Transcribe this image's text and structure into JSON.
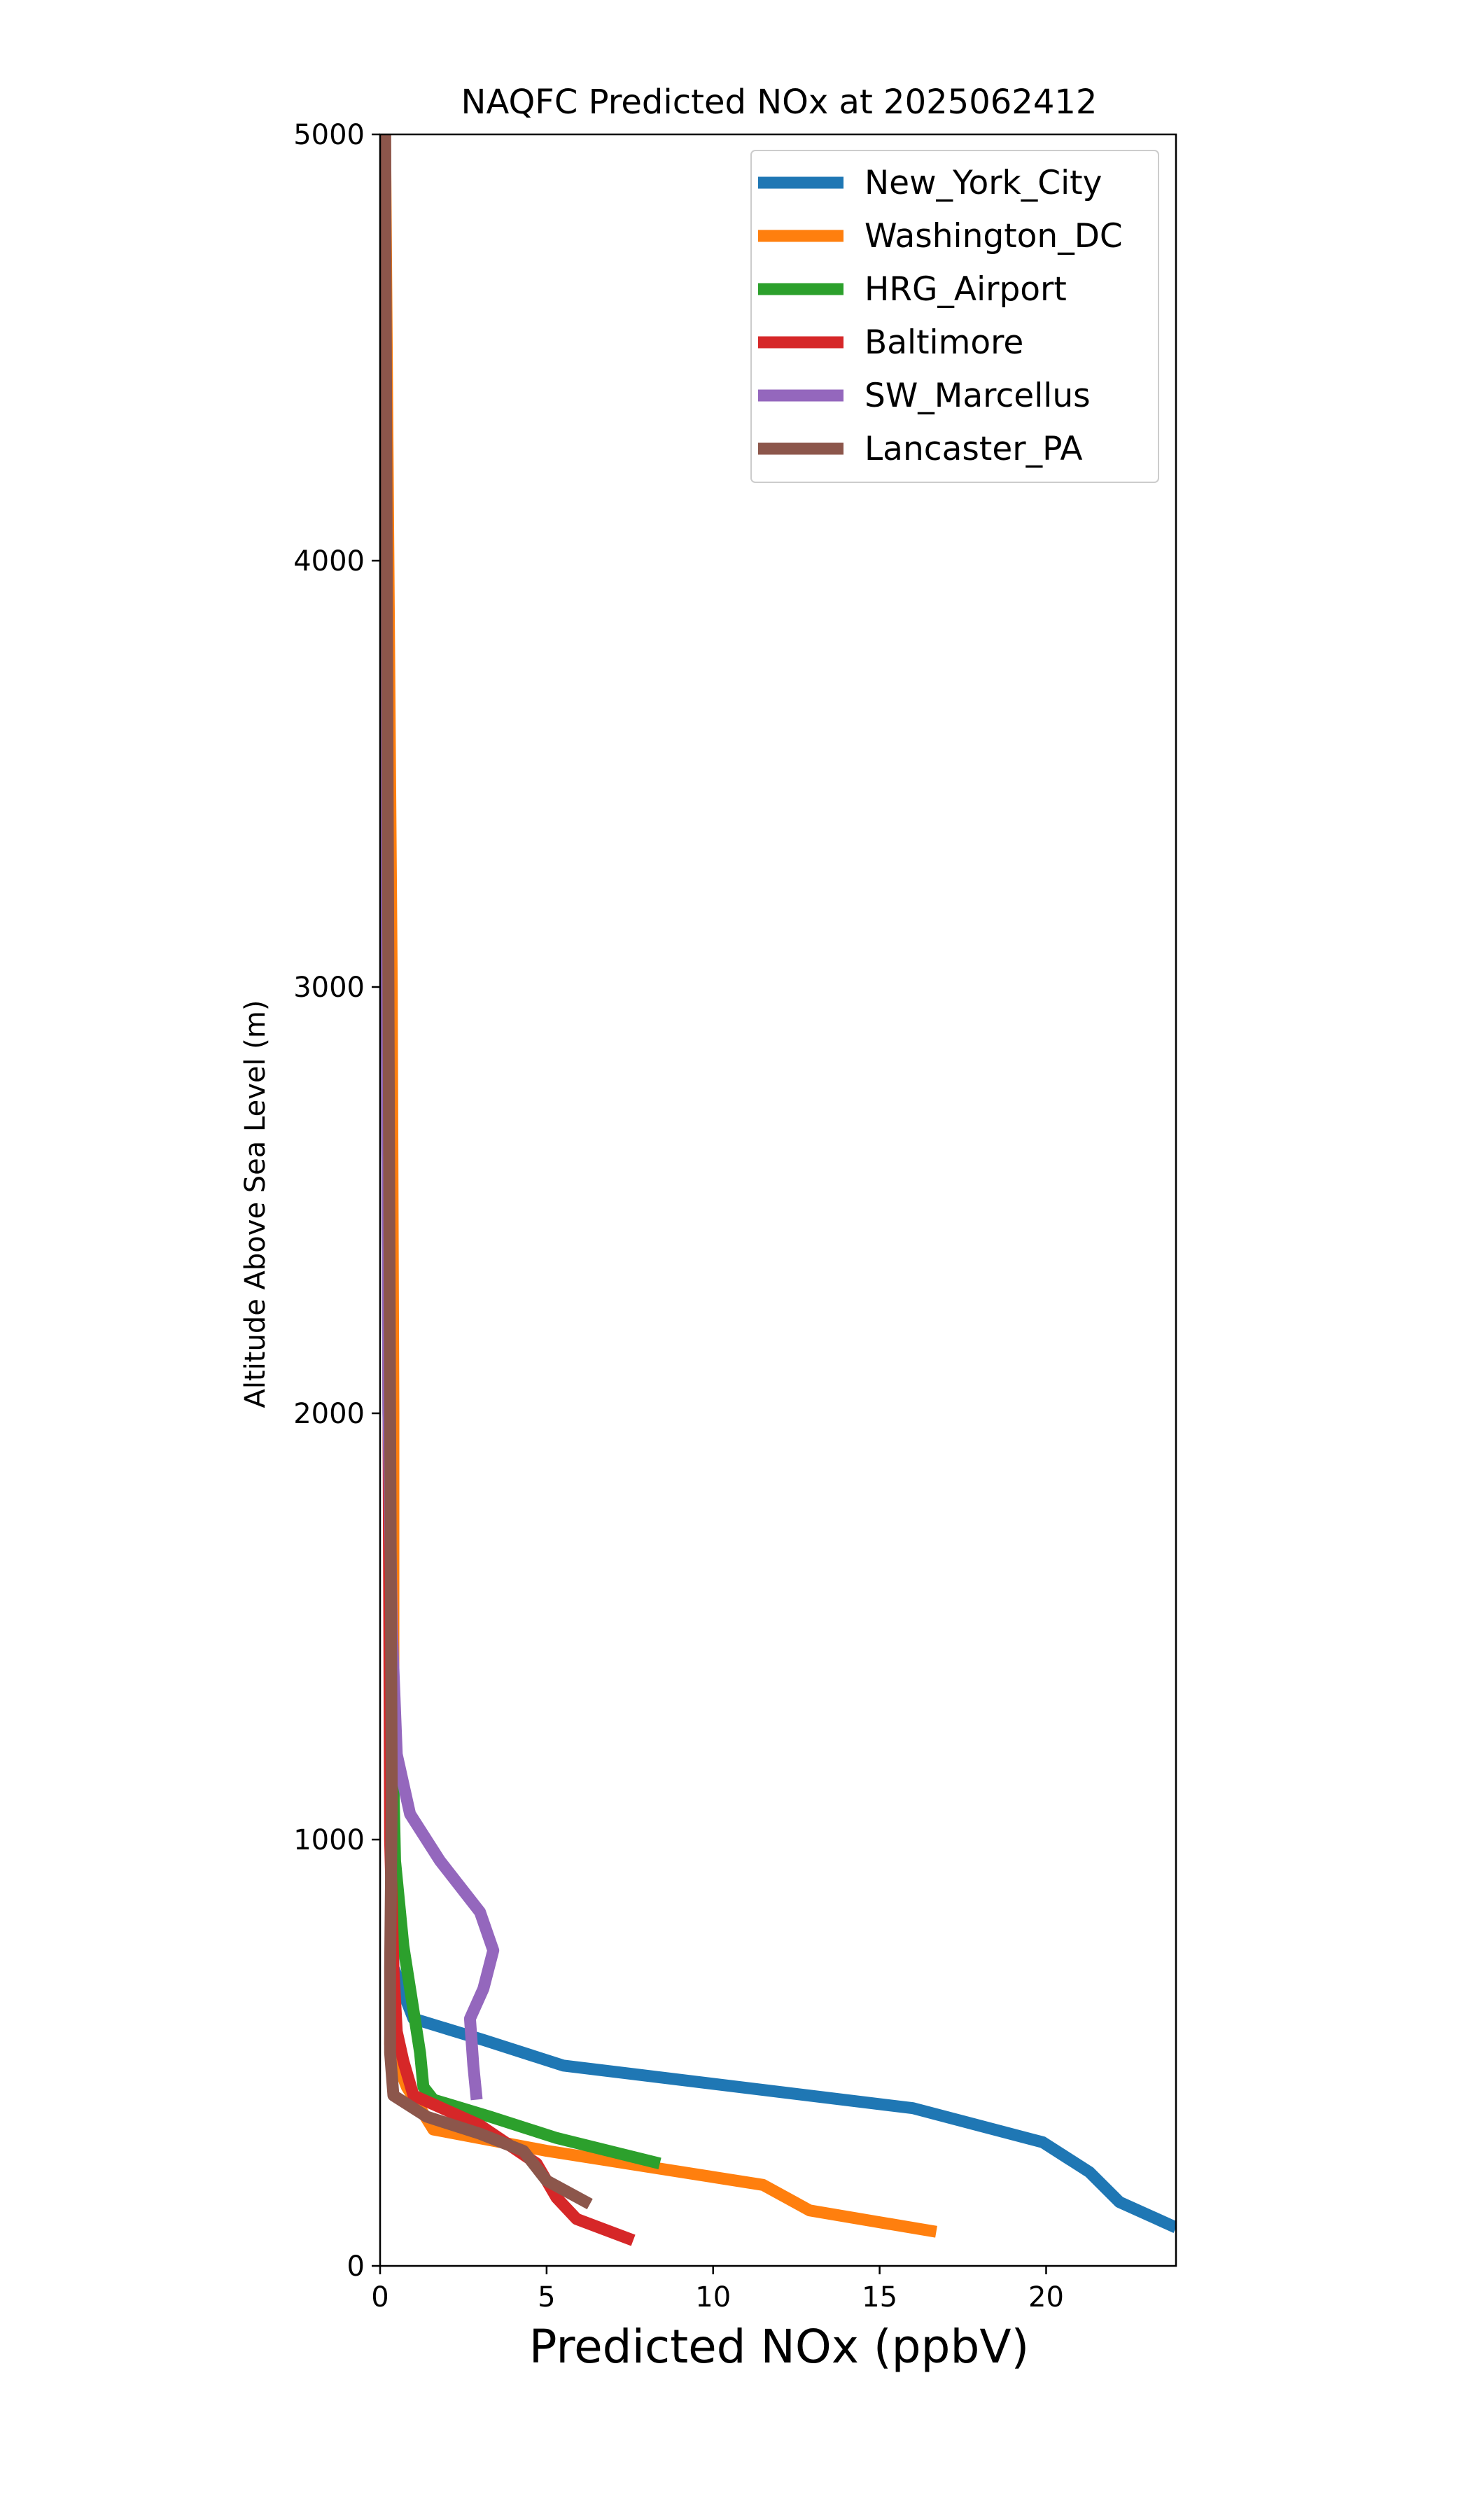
{
  "chart_data": {
    "type": "line",
    "title": "NAQFC Predicted NOx at 2025062412",
    "xlabel": "Predicted NOx (ppbV)",
    "ylabel": "Altitude Above Sea Level (m)",
    "xlim": [
      0,
      23.9
    ],
    "ylim": [
      0,
      5000
    ],
    "x_ticks": [
      0,
      5,
      10,
      15,
      20
    ],
    "y_ticks": [
      0,
      1000,
      2000,
      3000,
      4000,
      5000
    ],
    "grid": false,
    "legend": {
      "position": "top-right"
    },
    "series": [
      {
        "name": "New_York_City",
        "color": "#1f77b4",
        "x": [
          23.9,
          22.2,
          21.3,
          19.9,
          16.0,
          5.5,
          3.1,
          1.0,
          0.4,
          0.35,
          0.3,
          0.25,
          0.2,
          0.15,
          0.12
        ],
        "y": [
          90,
          150,
          220,
          290,
          370,
          470,
          530,
          580,
          700,
          1000,
          1500,
          2000,
          3000,
          4000,
          5000
        ]
      },
      {
        "name": "Washington_DC",
        "color": "#ff7f0e",
        "x": [
          16.7,
          12.9,
          11.5,
          5.0,
          1.6,
          0.8,
          0.3,
          0.35,
          0.4,
          0.4,
          0.4,
          0.35,
          0.25,
          0.15
        ],
        "y": [
          80,
          130,
          190,
          270,
          320,
          420,
          520,
          800,
          1200,
          1600,
          2000,
          3000,
          4000,
          5000
        ]
      },
      {
        "name": "HRG_Airport",
        "color": "#2ca02c",
        "x": [
          8.4,
          5.3,
          3.3,
          1.6,
          1.3,
          1.2,
          1.0,
          0.7,
          0.45,
          0.3,
          0.2,
          0.15
        ],
        "y": [
          240,
          300,
          350,
          390,
          420,
          500,
          600,
          750,
          950,
          1500,
          3000,
          5000
        ]
      },
      {
        "name": "Baltimore",
        "color": "#d62728",
        "x": [
          7.6,
          5.9,
          5.3,
          4.7,
          3.0,
          1.0,
          0.7,
          0.5,
          0.4,
          0.3,
          0.2,
          0.15
        ],
        "y": [
          60,
          110,
          160,
          240,
          330,
          400,
          480,
          550,
          700,
          1000,
          3000,
          5000
        ]
      },
      {
        "name": "SW_Marcellus",
        "color": "#9467bd",
        "x": [
          2.9,
          2.8,
          2.7,
          3.1,
          3.4,
          3.0,
          1.8,
          0.9,
          0.5,
          0.35,
          0.25,
          0.2,
          0.15
        ],
        "y": [
          390,
          470,
          580,
          650,
          740,
          830,
          950,
          1060,
          1200,
          1500,
          2000,
          3000,
          5000
        ]
      },
      {
        "name": "Lancaster_PA",
        "color": "#8c564b",
        "x": [
          6.3,
          5.0,
          4.6,
          4.3,
          3.0,
          1.4,
          0.4,
          0.3,
          0.3,
          0.35,
          0.3,
          0.25,
          0.15
        ],
        "y": [
          145,
          200,
          240,
          270,
          310,
          350,
          400,
          500,
          700,
          1100,
          2000,
          3000,
          5000
        ]
      }
    ]
  }
}
